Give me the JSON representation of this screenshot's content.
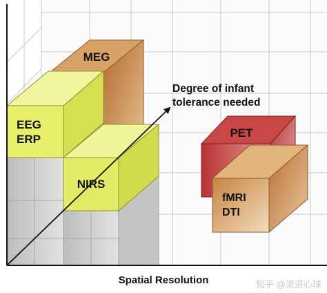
{
  "diagram": {
    "blocks": [
      {
        "id": "meg",
        "label": "MEG"
      },
      {
        "id": "eeg",
        "label": "EEG\nERP"
      },
      {
        "id": "nirs",
        "label": "NIRS"
      },
      {
        "id": "pet",
        "label": "PET"
      },
      {
        "id": "fmri",
        "label": "fMRI\nDTI"
      }
    ],
    "arrow_label": "Degree of infant\ntolerance needed",
    "axis_title": "Spatial Resolution",
    "watermark": "知乎 @流浪心球"
  },
  "colors": {
    "meg": "#d8a266",
    "eeg": "#e8f06a",
    "nirs": "#e4ec66",
    "pet": "#c84848",
    "fmri": "#d9a266",
    "grey_column": "#cfcfcf",
    "grid": "#cccccc"
  }
}
